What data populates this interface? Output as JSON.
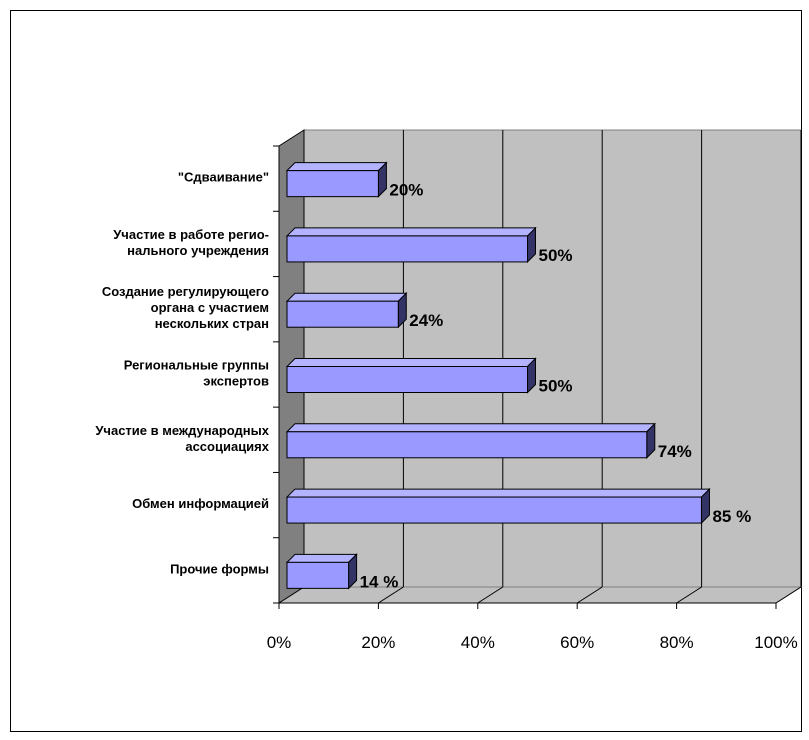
{
  "chart_data": {
    "type": "bar",
    "orientation": "horizontal",
    "style": "3d",
    "title": "",
    "xlabel": "",
    "ylabel": "",
    "xlim": [
      0,
      100
    ],
    "x_ticks": [
      "0%",
      "20%",
      "40%",
      "60%",
      "80%",
      "100%"
    ],
    "grid": true,
    "legend": "none",
    "categories": [
      [
        "\"Сдваивание\""
      ],
      [
        "Участие в работе регио-",
        "нального учреждения"
      ],
      [
        "Создание регулирующего",
        "органа с участием",
        "нескольких стран"
      ],
      [
        "Региональные группы",
        "экспертов"
      ],
      [
        "Участие в международных",
        "ассоциациях"
      ],
      [
        "Обмен информацией"
      ],
      [
        "Прочие формы"
      ]
    ],
    "values": [
      20,
      50,
      24,
      50,
      74,
      85,
      14
    ],
    "value_labels": [
      "20%",
      "50%",
      "24%",
      "50%",
      "74%",
      "85 %",
      "14 %"
    ],
    "colors": {
      "bar_front": "#9999ff",
      "bar_top": "#b3b3ff",
      "bar_side": "#333366",
      "plot_back": "#c0c0c0",
      "plot_floor": "#c0c0c0",
      "plot_side_wall": "#808080",
      "gridline": "#000000"
    }
  }
}
